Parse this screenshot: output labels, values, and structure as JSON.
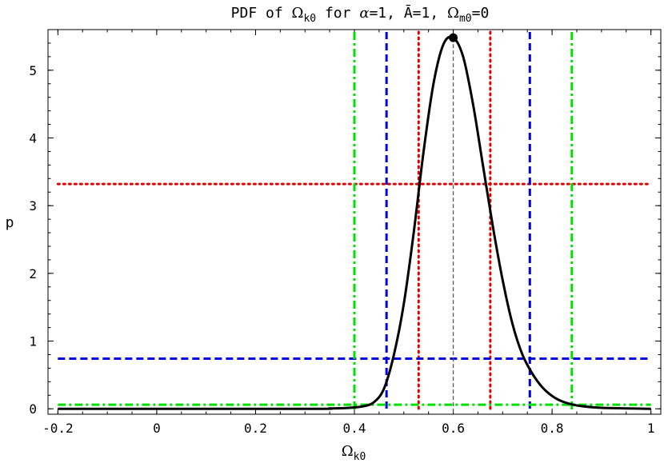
{
  "chart_data": {
    "type": "line",
    "title": {
      "prefix": "PDF of ",
      "omega": "Ω",
      "k0_sub": "k0",
      "middle": " for ",
      "alpha": "α",
      "eq1": "=1, ",
      "abar": "Ā",
      "eq2": "=1, ",
      "omega2": "Ω",
      "m0_sub": "m0",
      "eq3": "=0"
    },
    "xlabel": {
      "symbol": "Ω",
      "sub": "k0"
    },
    "ylabel": "p",
    "xlim": [
      -0.22,
      1.02
    ],
    "ylim": [
      -0.08,
      5.6
    ],
    "xticks": [
      {
        "value": -0.2,
        "label": "-0.2"
      },
      {
        "value": 0,
        "label": "0"
      },
      {
        "value": 0.2,
        "label": "0.2"
      },
      {
        "value": 0.4,
        "label": "0.4"
      },
      {
        "value": 0.6,
        "label": "0.6"
      },
      {
        "value": 0.8,
        "label": "0.8"
      },
      {
        "value": 1,
        "label": "1"
      }
    ],
    "yticks": [
      {
        "value": 0,
        "label": "0"
      },
      {
        "value": 1,
        "label": "1"
      },
      {
        "value": 2,
        "label": "2"
      },
      {
        "value": 3,
        "label": "3"
      },
      {
        "value": 4,
        "label": "4"
      },
      {
        "value": 5,
        "label": "5"
      }
    ],
    "grid": false,
    "series": [
      {
        "color": "#000000",
        "x": [
          -0.2,
          0.3,
          0.35,
          0.38,
          0.4,
          0.42,
          0.44,
          0.46,
          0.48,
          0.5,
          0.52,
          0.54,
          0.56,
          0.58,
          0.6,
          0.62,
          0.64,
          0.66,
          0.68,
          0.7,
          0.72,
          0.74,
          0.76,
          0.78,
          0.8,
          0.82,
          0.85,
          0.9,
          1.0
        ],
        "y": [
          0,
          0,
          0.005,
          0.01,
          0.02,
          0.04,
          0.1,
          0.3,
          0.8,
          1.55,
          2.6,
          3.8,
          4.8,
          5.38,
          5.48,
          5.2,
          4.5,
          3.6,
          2.7,
          1.9,
          1.25,
          0.8,
          0.52,
          0.32,
          0.19,
          0.11,
          0.05,
          0.015,
          0
        ]
      }
    ],
    "peak_marker": {
      "x": 0.6,
      "y": 5.48,
      "color": "#000000"
    },
    "median_line": {
      "x": 0.6,
      "color": "#555555"
    },
    "credible_intervals": [
      {
        "color": "#e00000",
        "style": "dotted",
        "lower": 0.53,
        "upper": 0.675,
        "level": 3.32
      },
      {
        "color": "#0000e0",
        "style": "dashed",
        "lower": 0.465,
        "upper": 0.755,
        "level": 0.74
      },
      {
        "color": "#00e000",
        "style": "dashdot",
        "lower": 0.4,
        "upper": 0.84,
        "level": 0.06
      }
    ]
  }
}
